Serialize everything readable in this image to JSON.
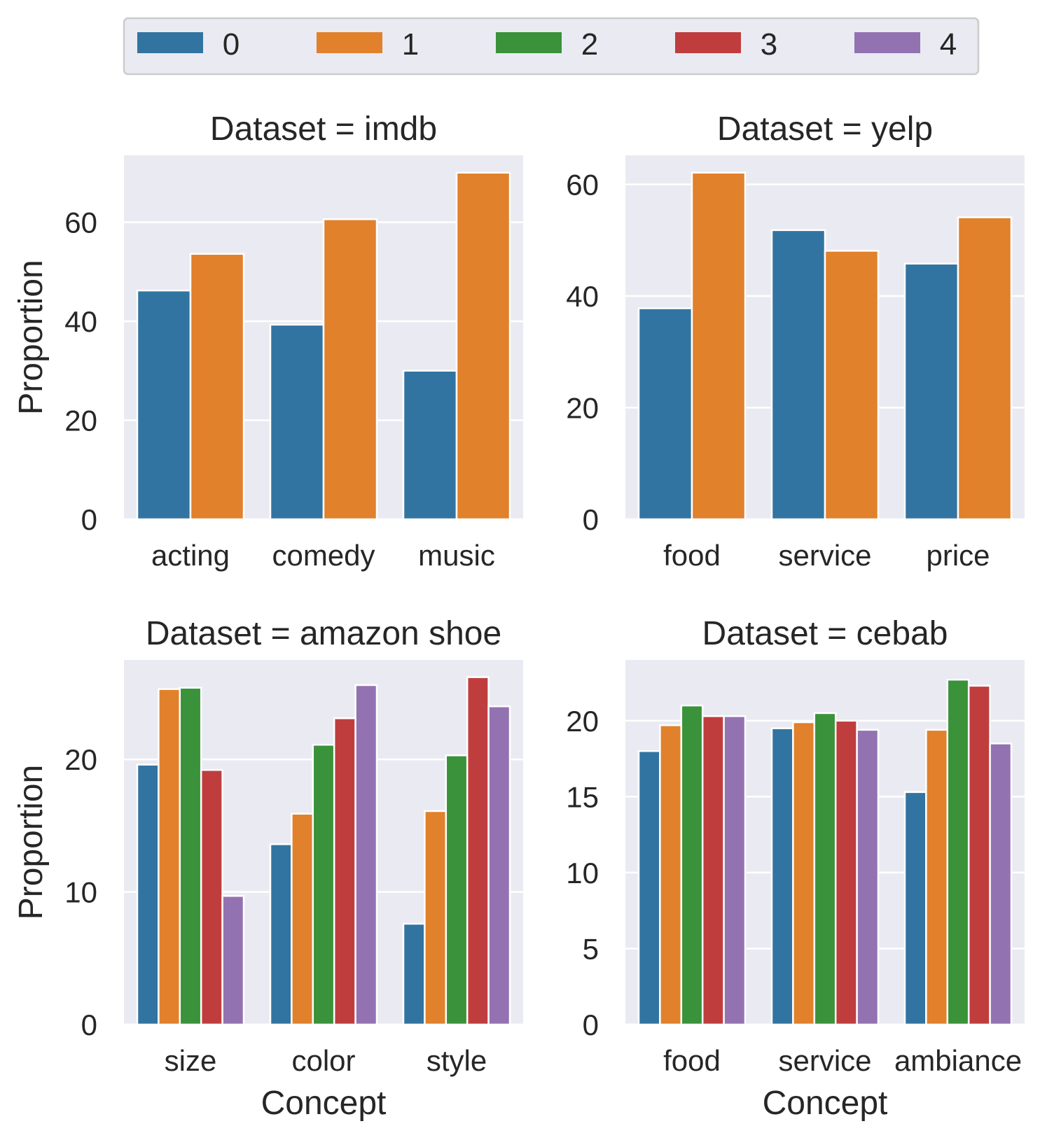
{
  "legend": {
    "labels": [
      "0",
      "1",
      "2",
      "3",
      "4"
    ],
    "colors": [
      "#3274a1",
      "#e1812c",
      "#3a923a",
      "#c03d3e",
      "#9372b2"
    ]
  },
  "chart_data": [
    {
      "type": "bar",
      "title": "Dataset = imdb",
      "xlabel": "",
      "ylabel": "Proportion",
      "categories": [
        "acting",
        "comedy",
        "music"
      ],
      "series": [
        {
          "name": "0",
          "values": [
            46.2,
            39.3,
            30.0
          ]
        },
        {
          "name": "1",
          "values": [
            53.6,
            60.6,
            70.0
          ]
        }
      ],
      "ylim": [
        0,
        73.5
      ],
      "yticks": [
        0,
        20,
        40,
        60
      ]
    },
    {
      "type": "bar",
      "title": "Dataset = yelp",
      "xlabel": "",
      "ylabel": "",
      "categories": [
        "food",
        "service",
        "price"
      ],
      "series": [
        {
          "name": "0",
          "values": [
            37.8,
            51.8,
            45.8
          ]
        },
        {
          "name": "1",
          "values": [
            62.1,
            48.1,
            54.1
          ]
        }
      ],
      "ylim": [
        0,
        65.2
      ],
      "yticks": [
        0,
        20,
        40,
        60
      ]
    },
    {
      "type": "bar",
      "title": "Dataset = amazon shoe",
      "xlabel": "Concept",
      "ylabel": "Proportion",
      "categories": [
        "size",
        "color",
        "style"
      ],
      "series": [
        {
          "name": "0",
          "values": [
            19.6,
            13.6,
            7.6
          ]
        },
        {
          "name": "1",
          "values": [
            25.3,
            15.9,
            16.1
          ]
        },
        {
          "name": "2",
          "values": [
            25.4,
            21.1,
            20.3
          ]
        },
        {
          "name": "3",
          "values": [
            19.2,
            23.1,
            26.2
          ]
        },
        {
          "name": "4",
          "values": [
            9.7,
            25.6,
            24.0
          ]
        }
      ],
      "ylim": [
        0,
        27.5
      ],
      "yticks": [
        0,
        10,
        20
      ]
    },
    {
      "type": "bar",
      "title": "Dataset = cebab",
      "xlabel": "Concept",
      "ylabel": "",
      "categories": [
        "food",
        "service",
        "ambiance"
      ],
      "series": [
        {
          "name": "0",
          "values": [
            18.0,
            19.5,
            15.3
          ]
        },
        {
          "name": "1",
          "values": [
            19.7,
            19.9,
            19.4
          ]
        },
        {
          "name": "2",
          "values": [
            21.0,
            20.5,
            22.7
          ]
        },
        {
          "name": "3",
          "values": [
            20.3,
            20.0,
            22.3
          ]
        },
        {
          "name": "4",
          "values": [
            20.3,
            19.4,
            18.5
          ]
        }
      ],
      "ylim": [
        0,
        24.0
      ],
      "yticks": [
        0,
        5,
        10,
        15,
        20
      ]
    }
  ]
}
